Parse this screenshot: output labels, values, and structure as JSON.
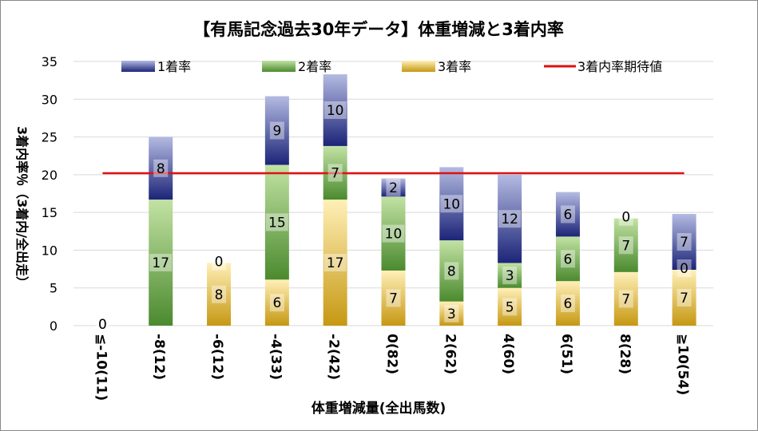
{
  "colors": {
    "s1_top": "#b4bbe2",
    "s1_bottom": "#1c2478",
    "s2_top": "#c2e2a4",
    "s2_bottom": "#4b8a2e",
    "s3_top": "#fff0b8",
    "s3_bottom": "#c69812",
    "expected_line": "#e01010",
    "grid": "#d9d9d9",
    "text": "#000000"
  },
  "chart_data": {
    "type": "bar",
    "stacked": true,
    "title": "【有馬記念過去30年データ】体重増減と3着内率",
    "xlabel": "体重増減量(全出馬数)",
    "ylabel": "3着内率％（3着内/全出走）",
    "ylim": [
      0,
      35
    ],
    "yticks": [
      0,
      5,
      10,
      15,
      20,
      25,
      30,
      35
    ],
    "grid": true,
    "legend_position": "top",
    "categories": [
      "≦-10(11)",
      "-8(12)",
      "-6(12)",
      "-4(33)",
      "-2(42)",
      "0(82)",
      "2(62)",
      "4(60)",
      "6(51)",
      "8(28)",
      "≧10(54)"
    ],
    "series": [
      {
        "name": "3着率",
        "values": [
          0.0,
          0.0,
          8.3,
          6.1,
          16.7,
          7.3,
          3.2,
          5.0,
          5.9,
          7.1,
          7.4
        ],
        "labels": [
          "",
          "",
          "8",
          "6",
          "17",
          "7",
          "3",
          "5",
          "6",
          "7",
          "7"
        ]
      },
      {
        "name": "2着率",
        "values": [
          0.0,
          16.7,
          0.0,
          15.2,
          7.1,
          9.8,
          8.1,
          3.3,
          5.9,
          7.1,
          0.0
        ],
        "labels": [
          "0",
          "17",
          "",
          "15",
          "7",
          "10",
          "8",
          "3",
          "6",
          "7",
          "0"
        ]
      },
      {
        "name": "1着率",
        "values": [
          0.0,
          8.3,
          0.0,
          9.1,
          9.5,
          2.4,
          9.7,
          11.7,
          5.9,
          0.0,
          7.4
        ],
        "labels": [
          "0",
          "8",
          "0",
          "9",
          "10",
          "2",
          "10",
          "12",
          "6",
          "0",
          "7"
        ]
      }
    ],
    "reference_line": {
      "name": "3着内率期待値",
      "value": 20.2
    },
    "legend": [
      "1着率",
      "2着率",
      "3着率",
      "3着内率期待値"
    ]
  }
}
